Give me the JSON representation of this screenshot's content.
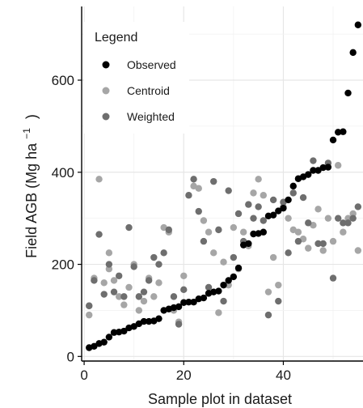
{
  "chart_data": {
    "type": "scatter",
    "xlabel": "Sample plot in dataset",
    "ylabel_main": "Field AGB (Mg ha",
    "ylabel_sup": "−1",
    "ylabel_close": ")",
    "xlim": [
      -0.5,
      56
    ],
    "ylim": [
      -10,
      760
    ],
    "x_ticks": [
      0,
      20,
      40
    ],
    "y_ticks": [
      0,
      200,
      400,
      600
    ],
    "grid": true,
    "legend": {
      "title": "Legend",
      "placement": "top-left",
      "entries": [
        {
          "label": "Observed",
          "color": "#000000"
        },
        {
          "label": "Centroid",
          "color": "#a6a6a6"
        },
        {
          "label": "Weighted",
          "color": "#6e6e6e"
        }
      ]
    },
    "series": [
      {
        "name": "Observed",
        "color": "#000000",
        "x": [
          1,
          2,
          3,
          4,
          5,
          6,
          7,
          8,
          9,
          10,
          11,
          12,
          13,
          14,
          15,
          16,
          17,
          18,
          19,
          20,
          21,
          22,
          23,
          24,
          25,
          26,
          27,
          28,
          29,
          30,
          31,
          32,
          33,
          34,
          35,
          36,
          37,
          38,
          39,
          40,
          41,
          42,
          43,
          44,
          45,
          46,
          47,
          48,
          49,
          50,
          51,
          52,
          53,
          54,
          55
        ],
        "y": [
          19,
          22,
          28,
          31,
          42,
          52,
          53,
          55,
          62,
          65,
          71,
          76,
          76,
          77,
          82,
          100,
          103,
          106,
          108,
          117,
          118,
          118,
          125,
          127,
          137,
          140,
          142,
          155,
          165,
          173,
          192,
          242,
          245,
          266,
          267,
          270,
          305,
          307,
          316,
          322,
          340,
          370,
          386,
          390,
          395,
          404,
          404,
          410,
          411,
          470,
          487,
          488,
          572,
          660,
          720
        ]
      },
      {
        "name": "Centroid",
        "color": "#a6a6a6",
        "x": [
          1,
          1,
          2,
          3,
          4,
          5,
          5,
          6,
          7,
          8,
          9,
          10,
          11,
          12,
          13,
          14,
          15,
          16,
          17,
          18,
          19,
          20,
          22,
          23,
          24,
          25,
          26,
          27,
          28,
          29,
          30,
          31,
          32,
          33,
          34,
          35,
          36,
          37,
          38,
          39,
          40,
          41,
          42,
          43,
          44,
          45,
          46,
          47,
          48,
          49,
          50,
          51,
          52,
          53,
          54,
          55
        ],
        "y": [
          90,
          110,
          170,
          385,
          160,
          225,
          190,
          165,
          130,
          112,
          150,
          200,
          100,
          120,
          170,
          130,
          160,
          280,
          270,
          100,
          75,
          175,
          370,
          365,
          295,
          270,
          225,
          95,
          205,
          155,
          280,
          190,
          270,
          240,
          355,
          385,
          350,
          140,
          215,
          155,
          325,
          300,
          275,
          270,
          255,
          235,
          285,
          320,
          230,
          300,
          250,
          415,
          270,
          300,
          310,
          230
        ]
      },
      {
        "name": "Weighted",
        "color": "#6e6e6e",
        "x": [
          1,
          2,
          3,
          4,
          5,
          6,
          7,
          8,
          9,
          10,
          11,
          12,
          13,
          14,
          15,
          16,
          17,
          18,
          19,
          20,
          21,
          22,
          23,
          24,
          25,
          26,
          27,
          28,
          29,
          30,
          31,
          32,
          33,
          34,
          35,
          36,
          37,
          38,
          39,
          40,
          41,
          42,
          43,
          44,
          45,
          46,
          47,
          48,
          49,
          50,
          51,
          52,
          53,
          54,
          55
        ],
        "y": [
          110,
          165,
          265,
          135,
          200,
          140,
          175,
          130,
          280,
          195,
          130,
          140,
          165,
          215,
          200,
          225,
          275,
          130,
          70,
          145,
          350,
          385,
          315,
          250,
          150,
          380,
          275,
          120,
          360,
          215,
          310,
          250,
          330,
          300,
          325,
          295,
          90,
          340,
          120,
          335,
          225,
          355,
          250,
          345,
          290,
          425,
          245,
          245,
          420,
          170,
          300,
          290,
          290,
          300,
          325
        ]
      }
    ]
  }
}
